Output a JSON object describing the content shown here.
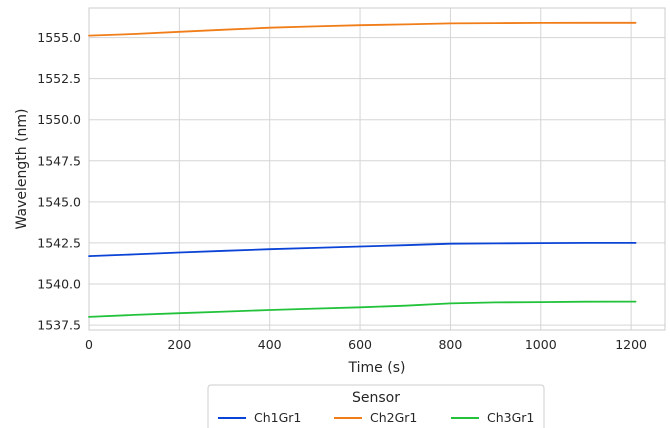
{
  "chart_data": {
    "type": "line",
    "xlabel": "Time (s)",
    "ylabel": "Wavelength (nm)",
    "xlim": [
      0,
      1275
    ],
    "ylim": [
      1537.2,
      1556.8
    ],
    "xticks": [
      0,
      200,
      400,
      600,
      800,
      1000,
      1200
    ],
    "xtick_labels": [
      "0",
      "200",
      "400",
      "600",
      "800",
      "1000",
      "1200"
    ],
    "yticks": [
      1537.5,
      1540.0,
      1542.5,
      1545.0,
      1547.5,
      1550.0,
      1552.5,
      1555.0
    ],
    "ytick_labels": [
      "1537.5",
      "1540.0",
      "1542.5",
      "1545.0",
      "1547.5",
      "1550.0",
      "1552.5",
      "1555.0"
    ],
    "grid": true,
    "legend": {
      "title": "Sensor",
      "placement": "bottom-center"
    },
    "x": [
      0,
      100,
      200,
      300,
      400,
      500,
      600,
      700,
      800,
      900,
      1000,
      1100,
      1210
    ],
    "series": [
      {
        "name": "Ch1Gr1",
        "color": "#0a43d6",
        "values": [
          1541.7,
          1541.8,
          1541.92,
          1542.02,
          1542.12,
          1542.2,
          1542.28,
          1542.36,
          1542.45,
          1542.47,
          1542.49,
          1542.5,
          1542.5
        ]
      },
      {
        "name": "Ch2Gr1",
        "color": "#f07d18",
        "values": [
          1555.12,
          1555.22,
          1555.35,
          1555.48,
          1555.6,
          1555.68,
          1555.75,
          1555.8,
          1555.86,
          1555.88,
          1555.89,
          1555.9,
          1555.9
        ]
      },
      {
        "name": "Ch3Gr1",
        "color": "#22c33a",
        "values": [
          1538.0,
          1538.12,
          1538.22,
          1538.32,
          1538.42,
          1538.5,
          1538.58,
          1538.68,
          1538.82,
          1538.88,
          1538.9,
          1538.92,
          1538.93
        ]
      }
    ]
  }
}
